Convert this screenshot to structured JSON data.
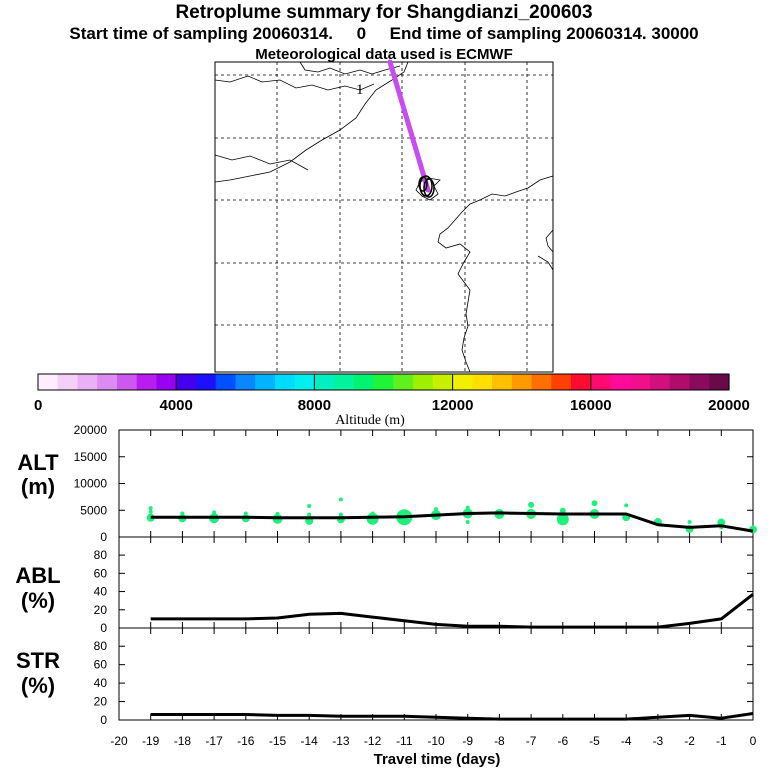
{
  "header": {
    "title": "Retroplume summary for Shangdianzi_200603",
    "subtitle": "Start time of sampling 20060314.     0     End time of sampling 20060314. 30000",
    "met_note": "Meteorological data used is ECMWF"
  },
  "colors": {
    "plume": "#c84cf0",
    "dots": "#1ef07a",
    "line": "#000000"
  },
  "chart_data": [
    {
      "type": "map",
      "name": "retroplume-map",
      "plume_label": "1",
      "grid_lines": "dashed",
      "plume_path_relative": [
        [
          0.0,
          0.0
        ],
        [
          1.0,
          1.0
        ]
      ]
    },
    {
      "type": "colorbar",
      "title": "Altitude (m)",
      "range": [
        0,
        20000
      ],
      "tick_values": [
        0,
        4000,
        8000,
        12000,
        16000,
        20000
      ],
      "tick_labels": [
        "0",
        "4000",
        "8000",
        "12000",
        "16000",
        "20000"
      ],
      "colors": [
        "#ffeeff",
        "#f4d0f8",
        "#eab0f4",
        "#dc8cf0",
        "#cc58ee",
        "#b81cee",
        "#9a00f0",
        "#4400ee",
        "#1c10ff",
        "#0050ff",
        "#0a86ff",
        "#00b4ff",
        "#00dcff",
        "#00f0f0",
        "#00f0c0",
        "#00f4a0",
        "#00f470",
        "#20f438",
        "#60f020",
        "#9ef000",
        "#c8ee00",
        "#f0f000",
        "#ffe000",
        "#ffc000",
        "#ff9a00",
        "#ff7000",
        "#ff4000",
        "#ff0a30",
        "#ff0a70",
        "#ff0a9a",
        "#f0108c",
        "#d0107c",
        "#b00c6c",
        "#8a0a5c",
        "#6a0a48"
      ]
    },
    {
      "type": "line",
      "name": "alt-panel",
      "ylabel": "ALT\n(m)",
      "ylim": [
        0,
        20000
      ],
      "y_ticks": [
        0,
        5000,
        10000,
        15000,
        20000
      ],
      "x": [
        -19,
        -18,
        -17,
        -16,
        -15,
        -14,
        -13,
        -12,
        -11,
        -10,
        -9,
        -8,
        -7,
        -6,
        -5,
        -4,
        -3,
        -2,
        -1,
        0
      ],
      "values": [
        3700,
        3700,
        3700,
        3700,
        3600,
        3600,
        3600,
        3700,
        3800,
        4100,
        4400,
        4500,
        4400,
        4300,
        4300,
        4300,
        2300,
        1800,
        2100,
        1100
      ],
      "scatter": [
        {
          "x": -19,
          "y": 3600,
          "r": 4
        },
        {
          "x": -19,
          "y": 4700,
          "r": 2
        },
        {
          "x": -19,
          "y": 5400,
          "r": 2
        },
        {
          "x": -18,
          "y": 3500,
          "r": 4
        },
        {
          "x": -18,
          "y": 4400,
          "r": 2
        },
        {
          "x": -17,
          "y": 3500,
          "r": 5
        },
        {
          "x": -17,
          "y": 4600,
          "r": 2
        },
        {
          "x": -16,
          "y": 3500,
          "r": 4
        },
        {
          "x": -16,
          "y": 4400,
          "r": 2
        },
        {
          "x": -15,
          "y": 3400,
          "r": 5
        },
        {
          "x": -15,
          "y": 4300,
          "r": 2
        },
        {
          "x": -14,
          "y": 3000,
          "r": 4
        },
        {
          "x": -14,
          "y": 4200,
          "r": 2
        },
        {
          "x": -14,
          "y": 5800,
          "r": 2
        },
        {
          "x": -13,
          "y": 3300,
          "r": 4
        },
        {
          "x": -13,
          "y": 4200,
          "r": 2
        },
        {
          "x": -13,
          "y": 7000,
          "r": 2
        },
        {
          "x": -12,
          "y": 3400,
          "r": 6
        },
        {
          "x": -12,
          "y": 4400,
          "r": 2
        },
        {
          "x": -11,
          "y": 3700,
          "r": 8
        },
        {
          "x": -10,
          "y": 4100,
          "r": 5
        },
        {
          "x": -10,
          "y": 5200,
          "r": 2
        },
        {
          "x": -9,
          "y": 4400,
          "r": 5
        },
        {
          "x": -9,
          "y": 2800,
          "r": 2
        },
        {
          "x": -9,
          "y": 5500,
          "r": 2
        },
        {
          "x": -8,
          "y": 4300,
          "r": 5
        },
        {
          "x": -7,
          "y": 4300,
          "r": 5
        },
        {
          "x": -7,
          "y": 6000,
          "r": 3
        },
        {
          "x": -6,
          "y": 3300,
          "r": 6
        },
        {
          "x": -6,
          "y": 4900,
          "r": 3
        },
        {
          "x": -5,
          "y": 4300,
          "r": 5
        },
        {
          "x": -5,
          "y": 6300,
          "r": 3
        },
        {
          "x": -4,
          "y": 3700,
          "r": 4
        },
        {
          "x": -4,
          "y": 5900,
          "r": 2
        },
        {
          "x": -3,
          "y": 2800,
          "r": 4
        },
        {
          "x": -2,
          "y": 1500,
          "r": 4
        },
        {
          "x": -2,
          "y": 2800,
          "r": 2
        },
        {
          "x": -1,
          "y": 2700,
          "r": 4
        },
        {
          "x": -1,
          "y": 1800,
          "r": 2
        },
        {
          "x": 0,
          "y": 1400,
          "r": 4
        }
      ]
    },
    {
      "type": "line",
      "name": "abl-panel",
      "ylabel": "ABL\n(%)",
      "ylim": [
        0,
        90
      ],
      "y_ticks": [
        0,
        20,
        40,
        60,
        80
      ],
      "x": [
        -19,
        -18,
        -17,
        -16,
        -15,
        -14,
        -13,
        -12,
        -11,
        -10,
        -9,
        -8,
        -7,
        -6,
        -5,
        -4,
        -3,
        -2,
        -1,
        0
      ],
      "values": [
        10,
        10,
        10,
        10,
        11,
        15,
        16,
        12,
        8,
        4,
        2,
        2,
        1,
        1,
        1,
        1,
        1,
        5,
        10,
        37
      ]
    },
    {
      "type": "line",
      "name": "str-panel",
      "ylabel": "STR\n(%)",
      "ylim": [
        0,
        90
      ],
      "y_ticks": [
        0,
        20,
        40,
        60,
        80
      ],
      "x": [
        -19,
        -18,
        -17,
        -16,
        -15,
        -14,
        -13,
        -12,
        -11,
        -10,
        -9,
        -8,
        -7,
        -6,
        -5,
        -4,
        -3,
        -2,
        -1,
        0
      ],
      "values": [
        6,
        6,
        6,
        6,
        5,
        5,
        4,
        4,
        4,
        3,
        2,
        1,
        1,
        1,
        1,
        1,
        3,
        5,
        2,
        7
      ]
    }
  ],
  "x_axis": {
    "label": "Travel time (days)",
    "xlim": [
      -20,
      0
    ],
    "ticks": [
      -20,
      -19,
      -18,
      -17,
      -16,
      -15,
      -14,
      -13,
      -12,
      -11,
      -10,
      -9,
      -8,
      -7,
      -6,
      -5,
      -4,
      -3,
      -2,
      -1,
      0
    ]
  }
}
